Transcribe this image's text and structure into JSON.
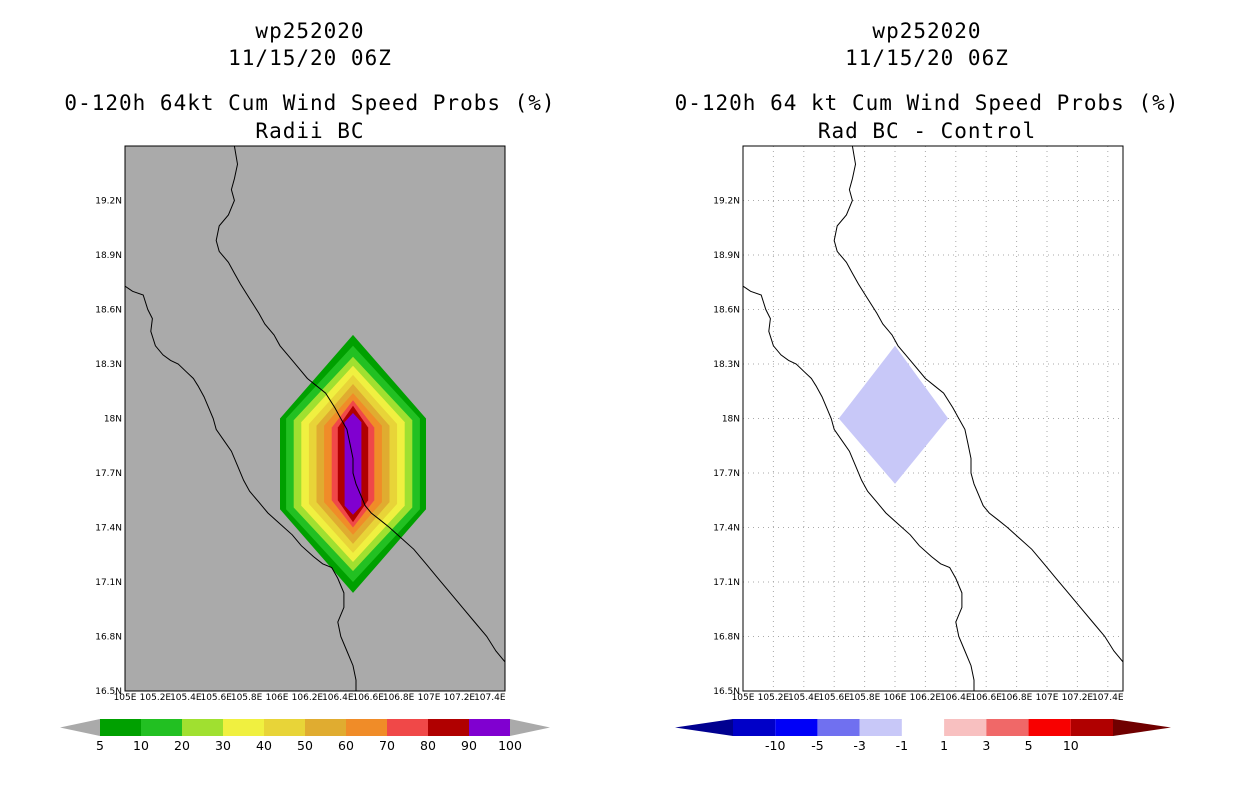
{
  "chart_data": [
    {
      "type": "heatmap",
      "storm_id": "wp252020",
      "datetime": "11/15/20 06Z",
      "title": "0-120h 64kt Cum Wind Speed Probs (%)",
      "subtitle": "Radii BC",
      "background": "#aaaaaa",
      "xlabel": "",
      "ylabel": "",
      "xlim": [
        105.0,
        107.5
      ],
      "ylim": [
        16.5,
        19.5
      ],
      "x_ticks": [
        105.0,
        105.2,
        105.4,
        105.6,
        105.8,
        106.0,
        106.2,
        106.4,
        106.6,
        106.8,
        107.0,
        107.2,
        107.4
      ],
      "x_tick_labels": [
        "105E",
        "105.2E",
        "105.4E",
        "105.6E",
        "105.8E",
        "106E",
        "106.2E",
        "106.4E",
        "106.6E",
        "106.8E",
        "107E",
        "107.2E",
        "107.4E"
      ],
      "y_ticks": [
        16.5,
        16.8,
        17.1,
        17.4,
        17.7,
        18.0,
        18.3,
        18.6,
        18.9,
        19.2
      ],
      "y_tick_labels": [
        "16.5N",
        "16.8N",
        "17.1N",
        "17.4N",
        "17.7N",
        "18N",
        "18.3N",
        "18.6N",
        "18.9N",
        "19.2N"
      ],
      "grid": false,
      "center": [
        106.5,
        17.75
      ],
      "contours": [
        {
          "level": 5,
          "color": "#00a000",
          "half_width": 0.48,
          "top": 18.46,
          "bottom": 17.04,
          "mid_top": 18.0,
          "mid_bot": 17.5
        },
        {
          "level": 10,
          "color": "#22c022",
          "half_width": 0.44,
          "top": 18.4,
          "bottom": 17.1,
          "mid_top": 18.0,
          "mid_bot": 17.5
        },
        {
          "level": 20,
          "color": "#a0e030",
          "half_width": 0.39,
          "top": 18.34,
          "bottom": 17.16,
          "mid_top": 17.99,
          "mid_bot": 17.51
        },
        {
          "level": 30,
          "color": "#f0f040",
          "half_width": 0.34,
          "top": 18.29,
          "bottom": 17.21,
          "mid_top": 17.98,
          "mid_bot": 17.52
        },
        {
          "level": 40,
          "color": "#e8d438",
          "half_width": 0.29,
          "top": 18.24,
          "bottom": 17.26,
          "mid_top": 17.97,
          "mid_bot": 17.53
        },
        {
          "level": 50,
          "color": "#e0ac30",
          "half_width": 0.24,
          "top": 18.19,
          "bottom": 17.31,
          "mid_top": 17.96,
          "mid_bot": 17.54
        },
        {
          "level": 60,
          "color": "#f08c28",
          "half_width": 0.19,
          "top": 18.14,
          "bottom": 17.36,
          "mid_top": 17.96,
          "mid_bot": 17.54
        },
        {
          "level": 70,
          "color": "#f04848",
          "half_width": 0.14,
          "top": 18.1,
          "bottom": 17.4,
          "mid_top": 17.95,
          "mid_bot": 17.55
        },
        {
          "level": 80,
          "color": "#b00000",
          "half_width": 0.1,
          "top": 18.07,
          "bottom": 17.43,
          "mid_top": 17.95,
          "mid_bot": 17.55
        },
        {
          "level": 90,
          "color": "#8000d0",
          "half_width": 0.055,
          "top": 18.03,
          "bottom": 17.47,
          "mid_top": 17.98,
          "mid_bot": 17.52
        }
      ],
      "colorbar": {
        "labels": [
          "5",
          "10",
          "20",
          "30",
          "40",
          "50",
          "60",
          "70",
          "80",
          "90",
          "100"
        ],
        "colors": [
          "#00a000",
          "#22c022",
          "#a0e030",
          "#f0f040",
          "#e8d438",
          "#e0ac30",
          "#f08c28",
          "#f04848",
          "#b00000",
          "#8000d0"
        ],
        "end_color": "#aaaaaa"
      }
    },
    {
      "type": "heatmap",
      "storm_id": "wp252020",
      "datetime": "11/15/20 06Z",
      "title": "0-120h 64 kt Cum Wind Speed Probs (%)",
      "subtitle": "Rad BC - Control",
      "background": "#ffffff",
      "xlabel": "",
      "ylabel": "",
      "xlim": [
        105.0,
        107.5
      ],
      "ylim": [
        16.5,
        19.5
      ],
      "x_ticks": [
        105.0,
        105.2,
        105.4,
        105.6,
        105.8,
        106.0,
        106.2,
        106.4,
        106.6,
        106.8,
        107.0,
        107.2,
        107.4
      ],
      "x_tick_labels": [
        "105E",
        "105.2E",
        "105.4E",
        "105.6E",
        "105.8E",
        "106E",
        "106.2E",
        "106.4E",
        "106.6E",
        "106.8E",
        "107E",
        "107.2E",
        "107.4E"
      ],
      "y_ticks": [
        16.5,
        16.8,
        17.1,
        17.4,
        17.7,
        18.0,
        18.3,
        18.6,
        18.9,
        19.2
      ],
      "y_tick_labels": [
        "16.5N",
        "16.8N",
        "17.1N",
        "17.4N",
        "17.7N",
        "18N",
        "18.3N",
        "18.6N",
        "18.9N",
        "19.2N"
      ],
      "grid": true,
      "regions": [
        {
          "range": "-3 to -1",
          "color": "#c8c8f8",
          "polygon": [
            [
              106.0,
              18.4
            ],
            [
              106.35,
              18.0
            ],
            [
              106.0,
              17.64
            ],
            [
              105.63,
              18.0
            ]
          ]
        }
      ],
      "colorbar": {
        "labels": [
          "-10",
          "-5",
          "-3",
          "-1",
          "1",
          "3",
          "5",
          "10"
        ],
        "colors": [
          "#0000c8",
          "#0000f8",
          "#7070f0",
          "#c8c8f8",
          "#ffffff",
          "#f8c0c0",
          "#f06868",
          "#f80000",
          "#b00000"
        ],
        "end_left": "#000090",
        "end_right": "#700000"
      }
    }
  ],
  "coastline": [
    [
      104.98,
      18.74
    ],
    [
      105.05,
      18.7
    ],
    [
      105.12,
      18.68
    ],
    [
      105.15,
      18.6
    ],
    [
      105.18,
      18.55
    ],
    [
      105.17,
      18.48
    ],
    [
      105.2,
      18.4
    ],
    [
      105.25,
      18.35
    ],
    [
      105.3,
      18.32
    ],
    [
      105.35,
      18.3
    ],
    [
      105.4,
      18.26
    ],
    [
      105.45,
      18.22
    ],
    [
      105.48,
      18.18
    ],
    [
      105.52,
      18.12
    ],
    [
      105.55,
      18.06
    ],
    [
      105.58,
      18.0
    ],
    [
      105.6,
      17.94
    ],
    [
      105.65,
      17.88
    ],
    [
      105.7,
      17.82
    ],
    [
      105.74,
      17.74
    ],
    [
      105.78,
      17.66
    ],
    [
      105.82,
      17.6
    ],
    [
      105.88,
      17.54
    ],
    [
      105.94,
      17.48
    ],
    [
      106.02,
      17.42
    ],
    [
      106.1,
      17.36
    ],
    [
      106.16,
      17.3
    ],
    [
      106.24,
      17.24
    ],
    [
      106.3,
      17.2
    ],
    [
      106.36,
      17.18
    ],
    [
      106.4,
      17.12
    ],
    [
      106.44,
      17.04
    ],
    [
      106.44,
      16.96
    ],
    [
      106.4,
      16.88
    ],
    [
      106.42,
      16.8
    ],
    [
      106.46,
      16.72
    ],
    [
      106.5,
      16.64
    ],
    [
      106.52,
      16.56
    ],
    [
      106.52,
      16.5
    ]
  ],
  "coastline2": [
    [
      105.72,
      19.5
    ],
    [
      105.74,
      19.4
    ],
    [
      105.72,
      19.32
    ],
    [
      105.7,
      19.26
    ],
    [
      105.72,
      19.2
    ],
    [
      105.68,
      19.12
    ],
    [
      105.62,
      19.06
    ],
    [
      105.6,
      18.98
    ],
    [
      105.62,
      18.92
    ],
    [
      105.68,
      18.86
    ],
    [
      105.72,
      18.8
    ],
    [
      105.76,
      18.74
    ],
    [
      105.82,
      18.66
    ],
    [
      105.88,
      18.58
    ],
    [
      105.92,
      18.52
    ],
    [
      105.98,
      18.46
    ],
    [
      106.02,
      18.4
    ],
    [
      106.08,
      18.34
    ],
    [
      106.14,
      18.28
    ],
    [
      106.2,
      18.22
    ],
    [
      106.26,
      18.18
    ],
    [
      106.32,
      18.14
    ],
    [
      106.38,
      18.06
    ],
    [
      106.42,
      18.0
    ],
    [
      106.46,
      17.94
    ],
    [
      106.48,
      17.86
    ],
    [
      106.5,
      17.78
    ],
    [
      106.5,
      17.7
    ],
    [
      106.52,
      17.64
    ],
    [
      106.55,
      17.58
    ],
    [
      106.58,
      17.52
    ],
    [
      106.62,
      17.48
    ],
    [
      106.68,
      17.44
    ],
    [
      106.74,
      17.4
    ],
    [
      106.82,
      17.34
    ],
    [
      106.9,
      17.28
    ],
    [
      106.98,
      17.2
    ],
    [
      107.06,
      17.12
    ],
    [
      107.14,
      17.04
    ],
    [
      107.22,
      16.96
    ],
    [
      107.3,
      16.88
    ],
    [
      107.38,
      16.8
    ],
    [
      107.44,
      16.72
    ],
    [
      107.5,
      16.66
    ]
  ]
}
